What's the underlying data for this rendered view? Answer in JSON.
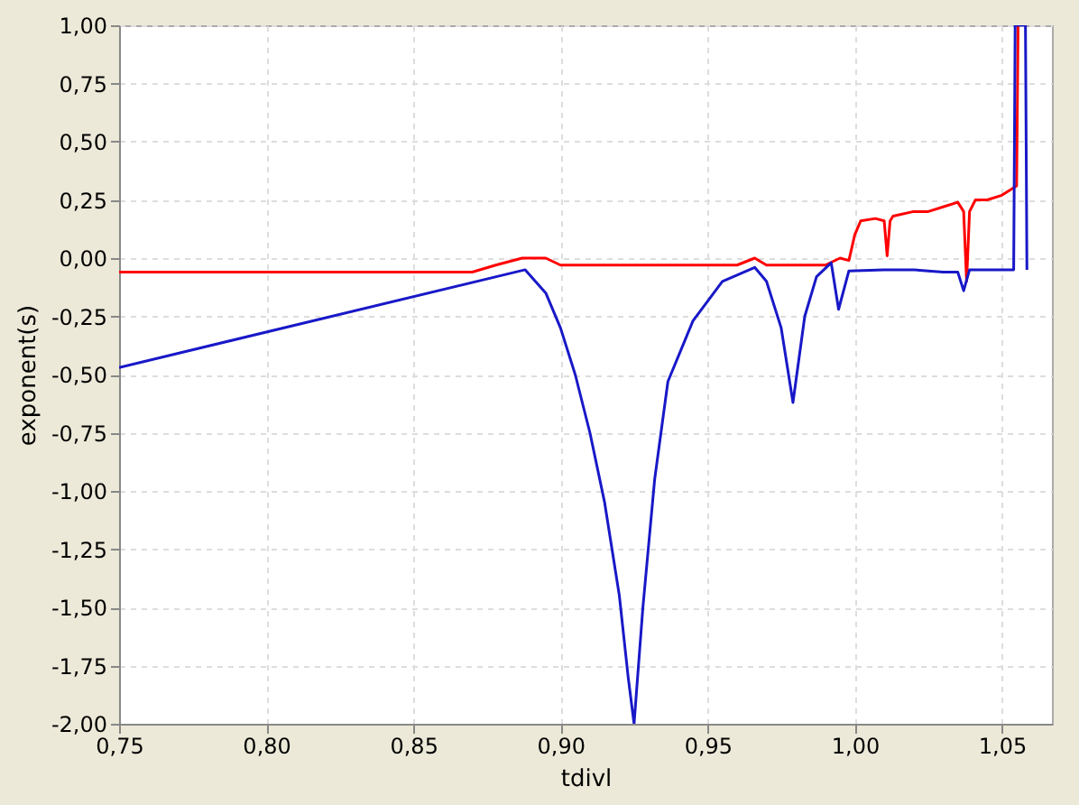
{
  "chart_data": {
    "type": "line",
    "xlabel": "tdivl",
    "ylabel": "exponent(s)",
    "xlim": [
      0.75,
      1.067
    ],
    "ylim": [
      -2.0,
      1.0
    ],
    "xticks": [
      {
        "value": 0.75,
        "label": "0,75"
      },
      {
        "value": 0.8,
        "label": "0,80"
      },
      {
        "value": 0.85,
        "label": "0,85"
      },
      {
        "value": 0.9,
        "label": "0,90"
      },
      {
        "value": 0.95,
        "label": "0,95"
      },
      {
        "value": 1.0,
        "label": "1,00"
      },
      {
        "value": 1.05,
        "label": "1,05"
      }
    ],
    "yticks": [
      {
        "value": -2.0,
        "label": "-2,00"
      },
      {
        "value": -1.75,
        "label": "-1,75"
      },
      {
        "value": -1.5,
        "label": "-1,50"
      },
      {
        "value": -1.25,
        "label": "-1,25"
      },
      {
        "value": -1.0,
        "label": "-1,00"
      },
      {
        "value": -0.75,
        "label": "-0,75"
      },
      {
        "value": -0.5,
        "label": "-0,50"
      },
      {
        "value": -0.25,
        "label": "-0,25"
      },
      {
        "value": 0.0,
        "label": "0,00"
      },
      {
        "value": 0.25,
        "label": "0,25"
      },
      {
        "value": 0.5,
        "label": "0,50"
      },
      {
        "value": 0.75,
        "label": "0,75"
      },
      {
        "value": 1.0,
        "label": "1,00"
      }
    ],
    "grid": true,
    "marker": "none",
    "line_style": "solid",
    "series": [
      {
        "color": "#ff0000",
        "x": [
          0.75,
          0.87,
          0.878,
          0.887,
          0.895,
          0.9,
          0.93,
          0.96,
          0.966,
          0.97,
          0.99,
          0.995,
          0.998,
          1.0,
          1.002,
          1.007,
          1.01,
          1.011,
          1.012,
          1.013,
          1.02,
          1.025,
          1.03,
          1.035,
          1.037,
          1.038,
          1.039,
          1.041,
          1.045,
          1.05,
          1.055,
          1.0555
        ],
        "values": [
          -0.06,
          -0.06,
          -0.03,
          0.0,
          0.0,
          -0.03,
          -0.03,
          -0.03,
          0.0,
          -0.03,
          -0.03,
          0.0,
          -0.01,
          0.1,
          0.16,
          0.17,
          0.16,
          0.01,
          0.16,
          0.18,
          0.2,
          0.2,
          0.22,
          0.24,
          0.2,
          -0.1,
          0.2,
          0.25,
          0.25,
          0.27,
          0.31,
          1.0
        ]
      },
      {
        "color": "#1818c8",
        "x": [
          0.75,
          0.888,
          0.895,
          0.9,
          0.905,
          0.91,
          0.915,
          0.92,
          0.923,
          0.925,
          0.928,
          0.932,
          0.9365,
          0.945,
          0.955,
          0.966,
          0.97,
          0.975,
          0.979,
          0.983,
          0.987,
          0.992,
          0.9945,
          0.998,
          1.01,
          1.02,
          1.03,
          1.035,
          1.037,
          1.039,
          1.045,
          1.054,
          1.0545,
          1.058,
          1.0585
        ],
        "values": [
          -0.47,
          -0.05,
          -0.15,
          -0.3,
          -0.5,
          -0.75,
          -1.05,
          -1.45,
          -1.8,
          -2.0,
          -1.5,
          -0.95,
          -0.53,
          -0.27,
          -0.1,
          -0.04,
          -0.1,
          -0.3,
          -0.62,
          -0.25,
          -0.08,
          -0.02,
          -0.22,
          -0.055,
          -0.05,
          -0.05,
          -0.06,
          -0.06,
          -0.14,
          -0.05,
          -0.05,
          -0.05,
          1.0,
          1.0,
          -0.05
        ]
      }
    ]
  }
}
